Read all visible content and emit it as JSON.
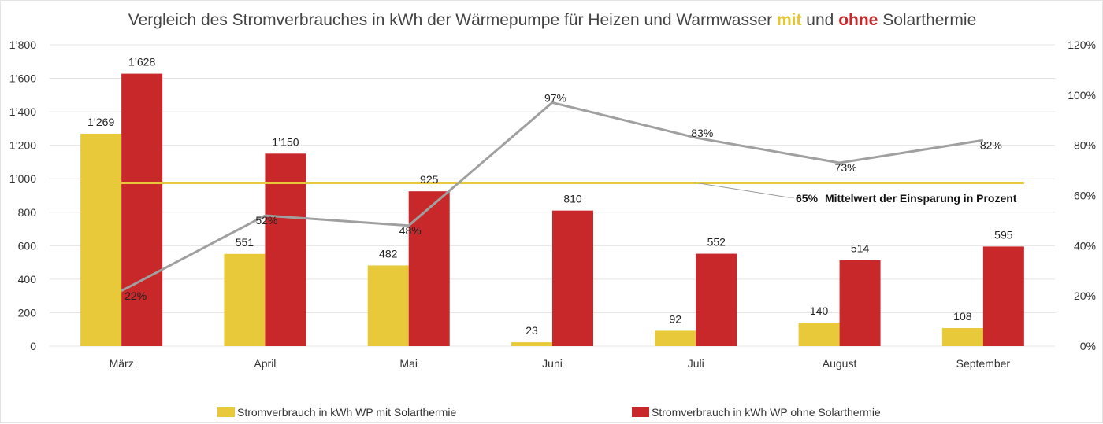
{
  "chart_data": {
    "type": "bar",
    "title": {
      "part1": "Vergleich des Stromverbrauches in kWh der Wärmepumpe für Heizen und Warmwasser ",
      "mit": "mit",
      "part2": " und ",
      "ohne": "ohne",
      "part3": " Solarthermie"
    },
    "categories": [
      "März",
      "April",
      "Mai",
      "Juni",
      "Juli",
      "August",
      "September"
    ],
    "series": [
      {
        "name": "Stromverbrauch in kWh WP mit Solarthermie",
        "color": "#E8C93A",
        "values": [
          1269,
          551,
          482,
          23,
          92,
          140,
          108
        ],
        "labels": [
          "1’269",
          "551",
          "482",
          "23",
          "92",
          "140",
          "108"
        ]
      },
      {
        "name": "Stromverbrauch in kWh WP ohne Solarthermie",
        "color": "#C8282A",
        "values": [
          1628,
          1150,
          925,
          810,
          552,
          514,
          595
        ],
        "labels": [
          "1’628",
          "1’150",
          "925",
          "810",
          "552",
          "514",
          "595"
        ]
      }
    ],
    "savings_line": {
      "color": "#A0A0A0",
      "values": [
        22,
        52,
        48,
        97,
        83,
        73,
        82
      ],
      "labels": [
        "22%",
        "52%",
        "48%",
        "97%",
        "83%",
        "73%",
        "82%"
      ]
    },
    "average_line": {
      "value": 65,
      "color": "#E8C93A",
      "label_value": "65%",
      "label_text": "Mittelwert der Einsparung in Prozent"
    },
    "y_left": {
      "ylim": [
        0,
        1800
      ],
      "ticks": [
        0,
        200,
        400,
        600,
        800,
        1000,
        1200,
        1400,
        1600,
        1800
      ],
      "tick_labels": [
        "0",
        "200",
        "400",
        "600",
        "800",
        "1’000",
        "1’200",
        "1’400",
        "1’600",
        "1’800"
      ]
    },
    "y_right": {
      "ylim": [
        0,
        120
      ],
      "ticks": [
        0,
        20,
        40,
        60,
        80,
        100,
        120
      ],
      "tick_labels": [
        "0%",
        "20%",
        "40%",
        "60%",
        "80%",
        "100%",
        "120%"
      ]
    },
    "grid": true,
    "legend_position": "bottom"
  }
}
